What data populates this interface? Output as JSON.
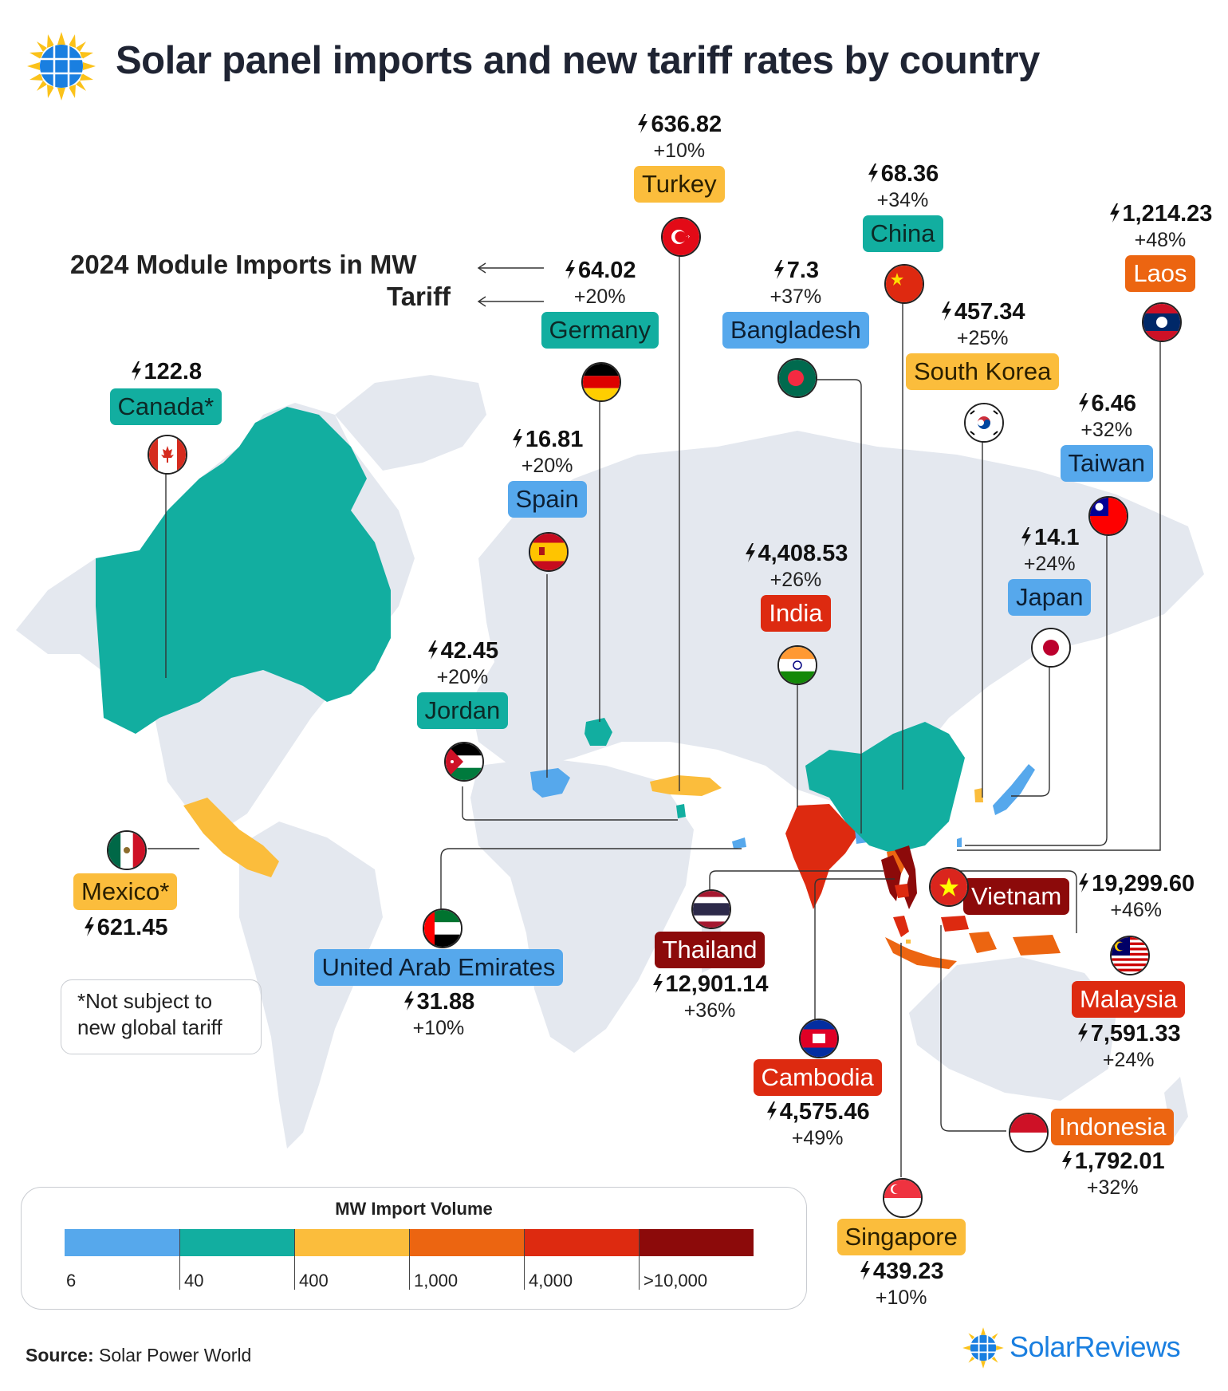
{
  "title": "Solar panel imports and new tariff rates by country",
  "key": {
    "imports_label": "2024 Module Imports in MW",
    "tariff_label": "Tariff"
  },
  "colors": {
    "blue": "#56a8ec",
    "teal": "#12aea0",
    "yellow": "#fbbd3c",
    "orange": "#ec6511",
    "red": "#dd2a10",
    "darkred": "#8c0a0a",
    "land": "#e4e8ef"
  },
  "chart_data": {
    "type": "choropleth-map",
    "title": "Solar panel imports and new tariff rates by country",
    "metric": "2024 Module Imports in MW",
    "secondary_metric": "Tariff",
    "countries": [
      {
        "name": "Turkey",
        "imports_mw": "636.82",
        "tariff": "+10%",
        "tier": "yellow"
      },
      {
        "name": "China",
        "imports_mw": "68.36",
        "tariff": "+34%",
        "tier": "teal"
      },
      {
        "name": "Laos",
        "imports_mw": "1,214.23",
        "tariff": "+48%",
        "tier": "orange"
      },
      {
        "name": "Germany",
        "imports_mw": "64.02",
        "tariff": "+20%",
        "tier": "teal"
      },
      {
        "name": "Bangladesh",
        "imports_mw": "7.3",
        "tariff": "+37%",
        "tier": "blue"
      },
      {
        "name": "South Korea",
        "imports_mw": "457.34",
        "tariff": "+25%",
        "tier": "yellow"
      },
      {
        "name": "Canada*",
        "imports_mw": "122.8",
        "tariff": "",
        "tier": "teal"
      },
      {
        "name": "Spain",
        "imports_mw": "16.81",
        "tariff": "+20%",
        "tier": "blue"
      },
      {
        "name": "Taiwan",
        "imports_mw": "6.46",
        "tariff": "+32%",
        "tier": "blue"
      },
      {
        "name": "India",
        "imports_mw": "4,408.53",
        "tariff": "+26%",
        "tier": "red"
      },
      {
        "name": "Japan",
        "imports_mw": "14.1",
        "tariff": "+24%",
        "tier": "blue"
      },
      {
        "name": "Jordan",
        "imports_mw": "42.45",
        "tariff": "+20%",
        "tier": "teal"
      },
      {
        "name": "Mexico*",
        "imports_mw": "621.45",
        "tariff": "",
        "tier": "yellow"
      },
      {
        "name": "Vietnam",
        "imports_mw": "19,299.60",
        "tariff": "+46%",
        "tier": "darkred"
      },
      {
        "name": "Thailand",
        "imports_mw": "12,901.14",
        "tariff": "+36%",
        "tier": "darkred"
      },
      {
        "name": "United Arab Emirates",
        "imports_mw": "31.88",
        "tariff": "+10%",
        "tier": "blue"
      },
      {
        "name": "Malaysia",
        "imports_mw": "7,591.33",
        "tariff": "+24%",
        "tier": "red"
      },
      {
        "name": "Cambodia",
        "imports_mw": "4,575.46",
        "tariff": "+49%",
        "tier": "red"
      },
      {
        "name": "Indonesia",
        "imports_mw": "1,792.01",
        "tariff": "+32%",
        "tier": "orange"
      },
      {
        "name": "Singapore",
        "imports_mw": "439.23",
        "tariff": "+10%",
        "tier": "yellow"
      }
    ],
    "legend": {
      "title": "MW Import Volume",
      "bins": [
        {
          "label": "6",
          "color": "#56a8ec"
        },
        {
          "label": "40",
          "color": "#12aea0"
        },
        {
          "label": "400",
          "color": "#fbbd3c"
        },
        {
          "label": "1,000",
          "color": "#ec6511"
        },
        {
          "label": "4,000",
          "color": "#dd2a10"
        },
        {
          "label": ">10,000",
          "color": "#8c0a0a"
        }
      ]
    }
  },
  "footnote": {
    "line1": "*Not subject to",
    "line2": "new global tariff"
  },
  "source": {
    "label": "Source:",
    "text": "Solar Power World"
  },
  "brand": {
    "name": "SolarReviews"
  }
}
